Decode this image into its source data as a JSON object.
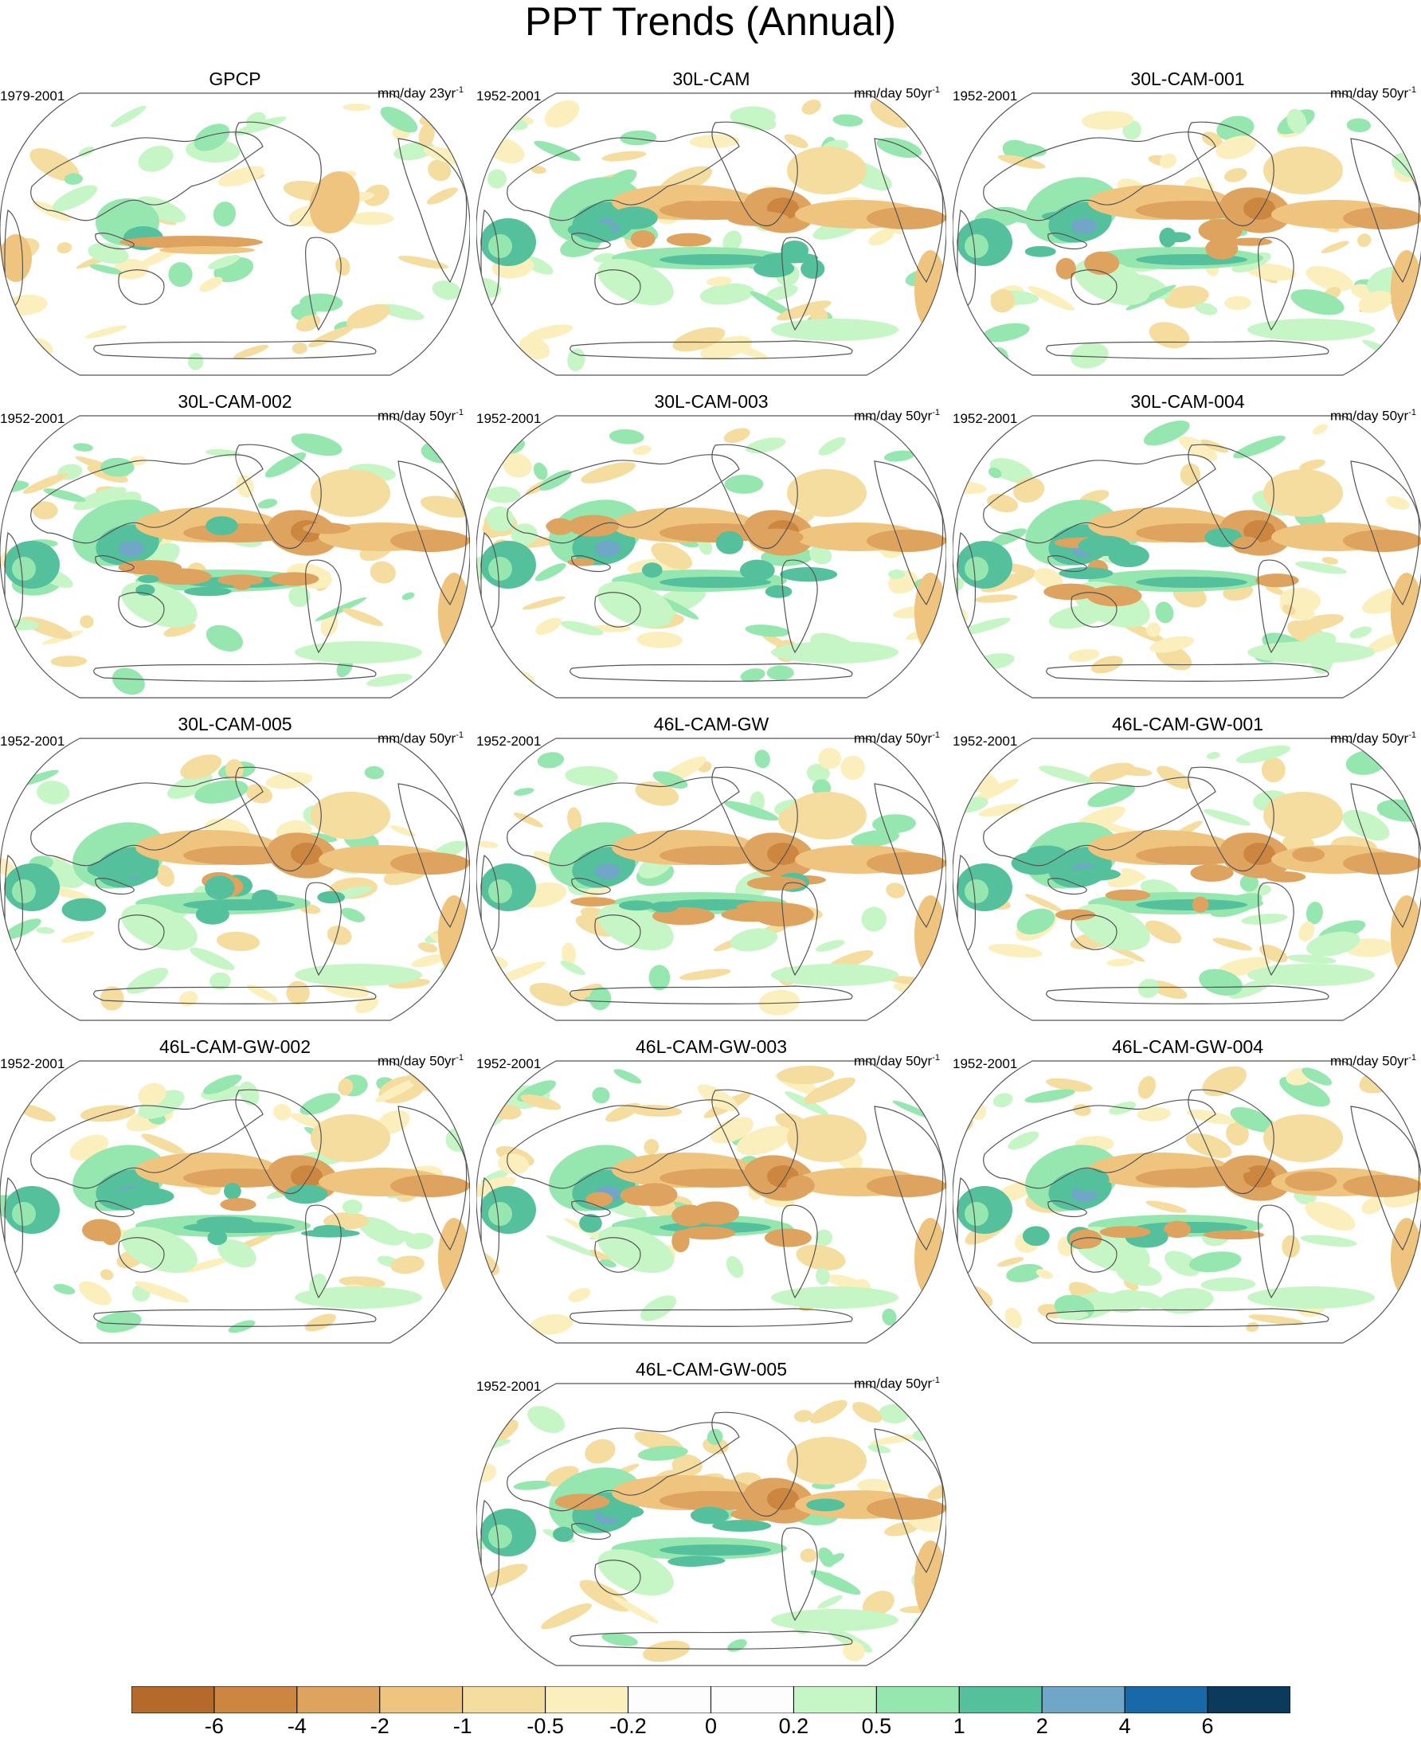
{
  "title": "PPT Trends (Annual)",
  "panels": [
    {
      "title": "GPCP",
      "period": "1979-2001",
      "units": "mm/day 23yr",
      "units_exp": "-1"
    },
    {
      "title": "30L-CAM",
      "period": "1952-2001",
      "units": "mm/day 50yr",
      "units_exp": "-1"
    },
    {
      "title": "30L-CAM-001",
      "period": "1952-2001",
      "units": "mm/day 50yr",
      "units_exp": "-1"
    },
    {
      "title": "30L-CAM-002",
      "period": "1952-2001",
      "units": "mm/day 50yr",
      "units_exp": "-1"
    },
    {
      "title": "30L-CAM-003",
      "period": "1952-2001",
      "units": "mm/day 50yr",
      "units_exp": "-1"
    },
    {
      "title": "30L-CAM-004",
      "period": "1952-2001",
      "units": "mm/day 50yr",
      "units_exp": "-1"
    },
    {
      "title": "30L-CAM-005",
      "period": "1952-2001",
      "units": "mm/day 50yr",
      "units_exp": "-1"
    },
    {
      "title": "46L-CAM-GW",
      "period": "1952-2001",
      "units": "mm/day 50yr",
      "units_exp": "-1"
    },
    {
      "title": "46L-CAM-GW-001",
      "period": "1952-2001",
      "units": "mm/day 50yr",
      "units_exp": "-1"
    },
    {
      "title": "46L-CAM-GW-002",
      "period": "1952-2001",
      "units": "mm/day 50yr",
      "units_exp": "-1"
    },
    {
      "title": "46L-CAM-GW-003",
      "period": "1952-2001",
      "units": "mm/day 50yr",
      "units_exp": "-1"
    },
    {
      "title": "46L-CAM-GW-004",
      "period": "1952-2001",
      "units": "mm/day 50yr",
      "units_exp": "-1"
    },
    {
      "title": "46L-CAM-GW-005",
      "period": "1952-2001",
      "units": "mm/day 50yr",
      "units_exp": "-1"
    }
  ],
  "colorbar": {
    "colors": [
      "#b5692a",
      "#cc8640",
      "#dda35f",
      "#efc47f",
      "#f5dc9f",
      "#fbf0bd",
      "#fdfdfd",
      "#fdfdfd",
      "#c6f5c6",
      "#96e6b0",
      "#54c09c",
      "#70a6c8",
      "#1968a8",
      "#0b3a5c"
    ],
    "labels": [
      "-6",
      "-4",
      "-2",
      "-1",
      "-0.5",
      "-0.2",
      "0",
      "0.2",
      "0.5",
      "1",
      "2",
      "4",
      "6"
    ]
  }
}
